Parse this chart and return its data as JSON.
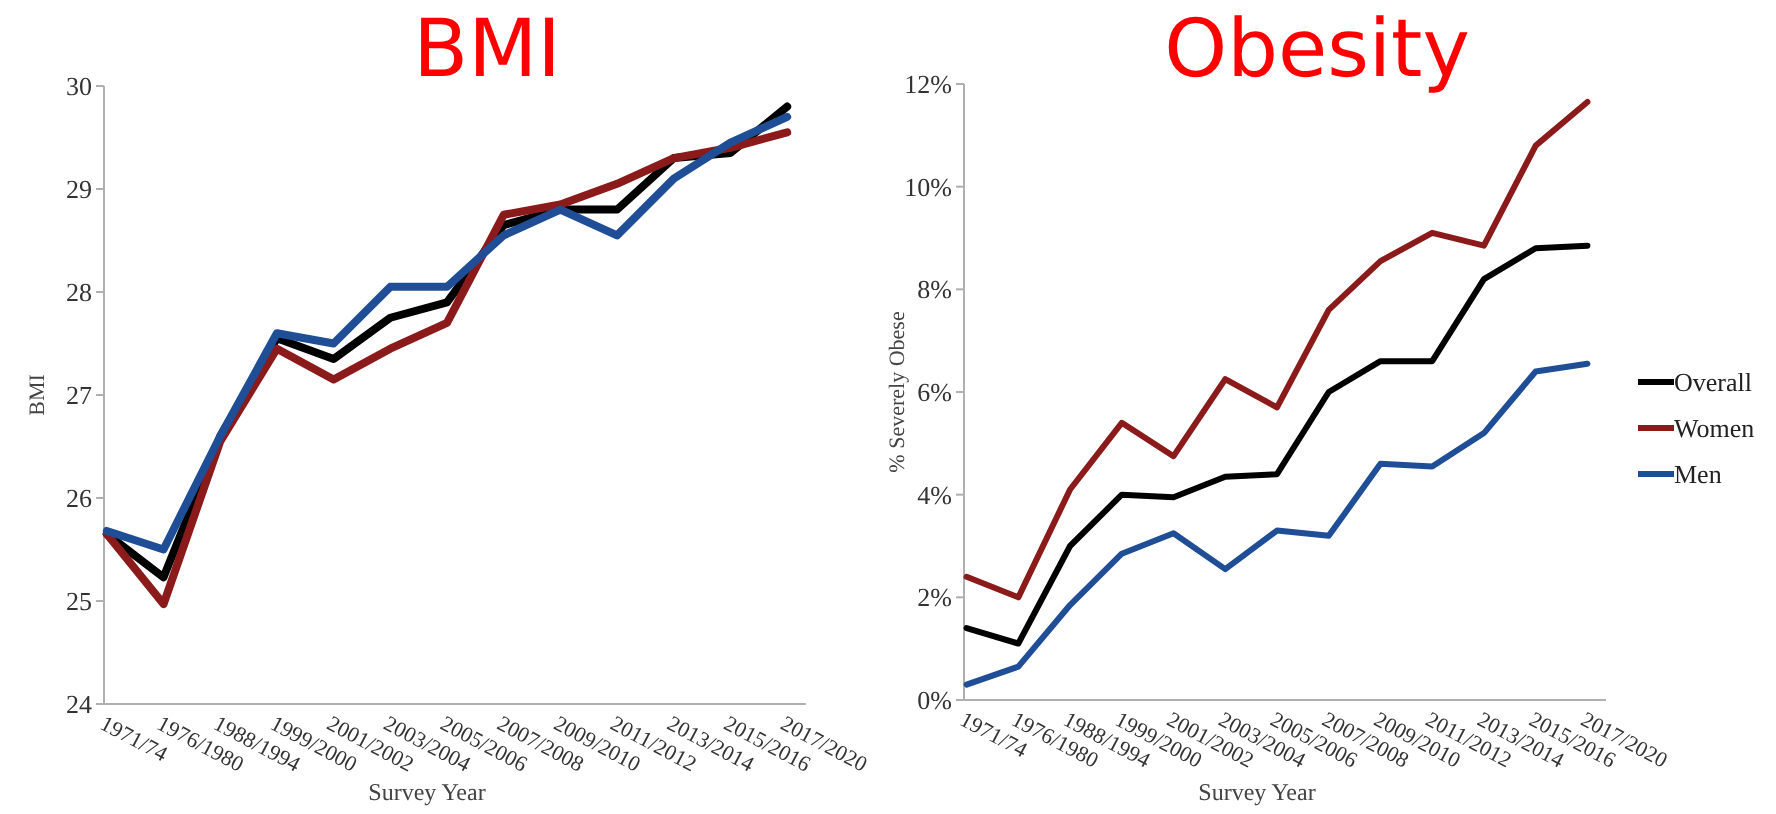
{
  "chart_data": [
    {
      "type": "line",
      "title": "BMI",
      "xlabel": "Survey Year",
      "ylabel": "BMI",
      "categories": [
        "1971/74",
        "1976/1980",
        "1988/1994",
        "1999/2000",
        "2001/2002",
        "2003/2004",
        "2005/2006",
        "2007/2008",
        "2009/2010",
        "2011/2012",
        "2013/2014",
        "2015/2016",
        "2017/2020"
      ],
      "ylim": [
        24,
        30
      ],
      "yticks": [
        24,
        25,
        26,
        27,
        28,
        29,
        30
      ],
      "grid": false,
      "legend": false,
      "series": [
        {
          "color": "#000000",
          "values": [
            25.65,
            25.23,
            26.6,
            27.55,
            27.35,
            27.75,
            27.9,
            28.65,
            28.8,
            28.8,
            29.3,
            29.35,
            29.8
          ]
        },
        {
          "color": "#8b1a1a",
          "values": [
            25.65,
            24.97,
            26.55,
            27.45,
            27.15,
            27.45,
            27.7,
            28.75,
            28.85,
            29.05,
            29.3,
            29.4,
            29.55
          ]
        },
        {
          "color": "#1f4e96",
          "values": [
            25.68,
            25.5,
            26.6,
            27.6,
            27.5,
            28.05,
            28.05,
            28.55,
            28.8,
            28.55,
            29.1,
            29.45,
            29.7
          ]
        }
      ]
    },
    {
      "type": "line",
      "title": "Obesity",
      "xlabel": "Survey Year",
      "ylabel": "% Severely Obese",
      "categories": [
        "1971/74",
        "1976/1980",
        "1988/1994",
        "1999/2000",
        "2001/2002",
        "2003/2004",
        "2005/2006",
        "2007/2008",
        "2009/2010",
        "2011/2012",
        "2013/2014",
        "2015/2016",
        "2017/2020"
      ],
      "ylim": [
        0,
        12
      ],
      "yticks": [
        {
          "value": 0,
          "label": "0%"
        },
        {
          "value": 2,
          "label": "2%"
        },
        {
          "value": 4,
          "label": "4%"
        },
        {
          "value": 6,
          "label": "6%"
        },
        {
          "value": 8,
          "label": "8%"
        },
        {
          "value": 10,
          "label": "10%"
        },
        {
          "value": 12,
          "label": "12%"
        }
      ],
      "grid": false,
      "legend": "right",
      "series": [
        {
          "name": "Overall",
          "color": "#000000",
          "values": [
            1.4,
            1.1,
            3.0,
            4.0,
            3.95,
            4.35,
            4.4,
            6.0,
            6.6,
            6.6,
            8.2,
            8.8,
            8.85
          ]
        },
        {
          "name": "Women",
          "color": "#8b1a1a",
          "values": [
            2.4,
            2.0,
            4.1,
            5.4,
            4.75,
            6.25,
            5.7,
            7.6,
            8.55,
            9.1,
            8.85,
            10.8,
            11.65
          ]
        },
        {
          "name": "Men",
          "color": "#1f4e96",
          "values": [
            0.3,
            0.65,
            1.85,
            2.85,
            3.25,
            2.55,
            3.3,
            3.2,
            4.6,
            4.55,
            5.2,
            6.4,
            6.55
          ]
        }
      ]
    }
  ]
}
